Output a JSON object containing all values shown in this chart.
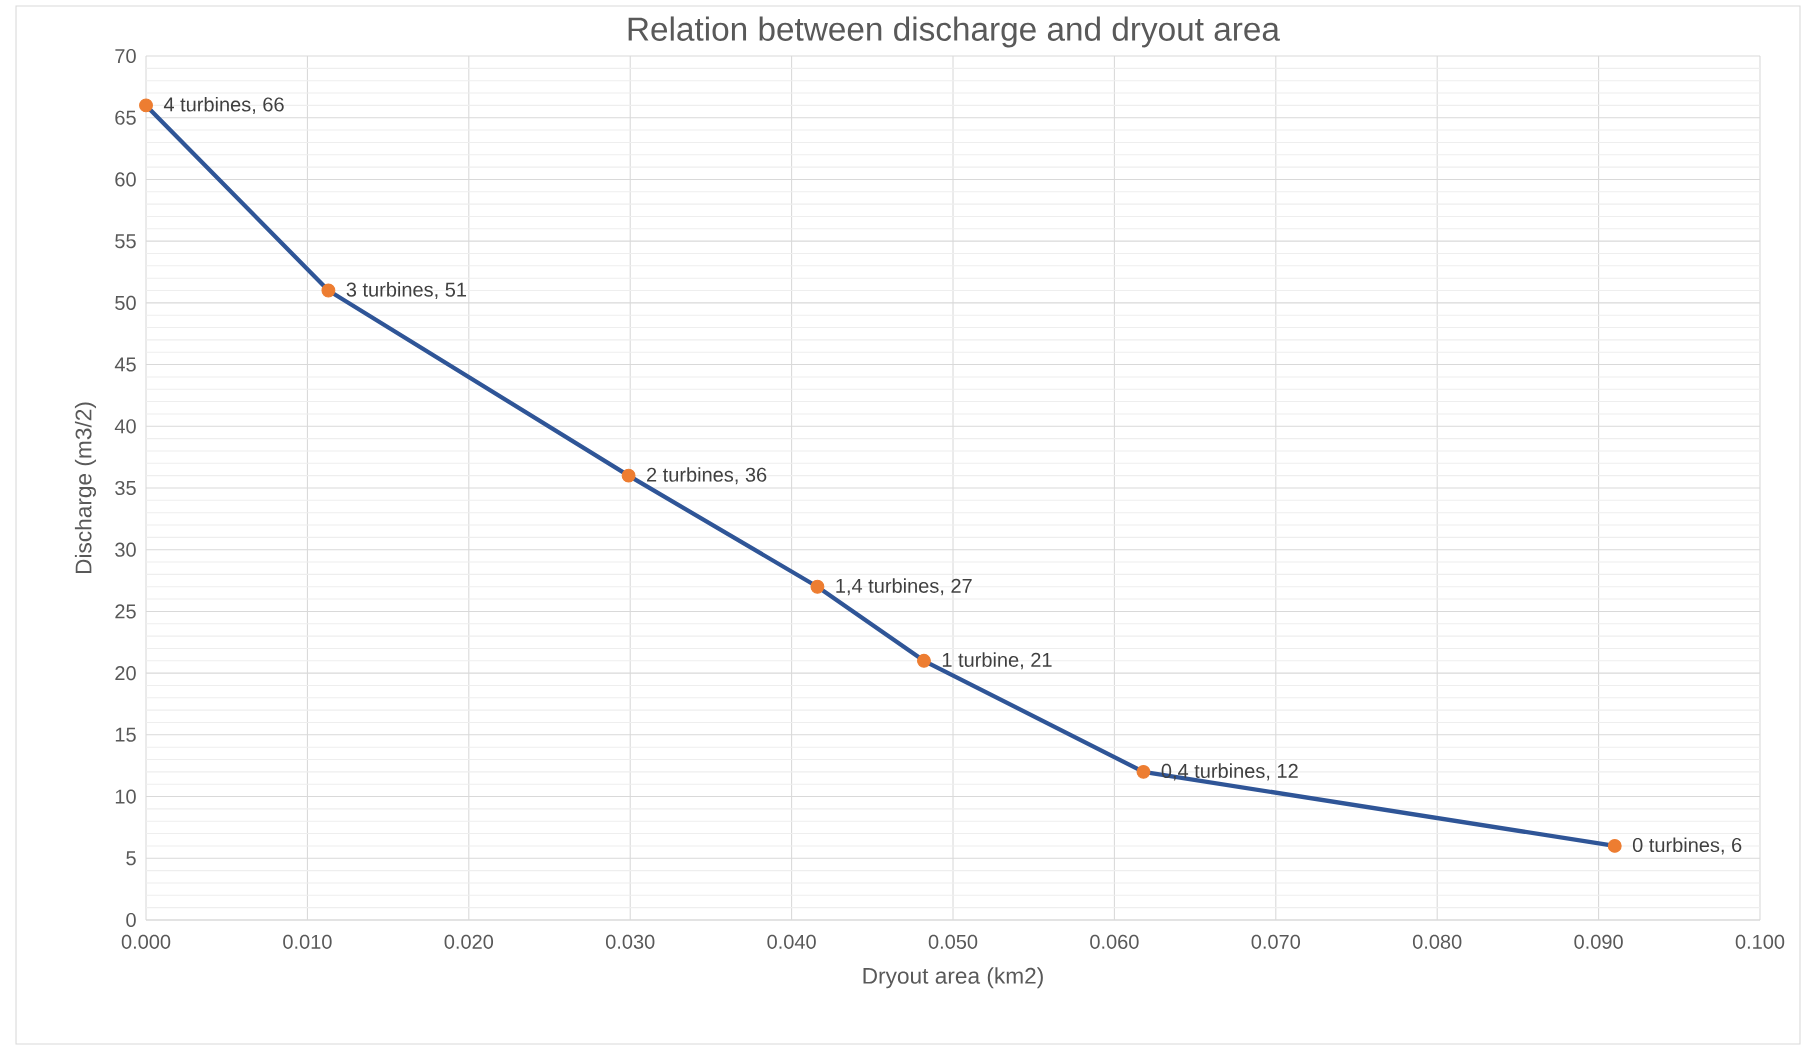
{
  "chart_data": {
    "type": "line",
    "title": "Relation between discharge and dryout area",
    "xlabel": "Dryout area (km2)",
    "ylabel": "Discharge (m3/2)",
    "series": [
      {
        "color": "#2f5597",
        "colors": [
          "#ed7d31",
          "#ed7d31",
          "#ed7d31",
          "#ed7d31",
          "#ed7d31",
          "#ed7d31",
          "#ed7d31"
        ],
        "x": [
          0.0,
          0.0113,
          0.0299,
          0.0416,
          0.0482,
          0.0618,
          0.091
        ],
        "values": [
          66,
          51,
          36,
          27,
          21,
          12,
          6
        ],
        "value_labels": [
          "4 turbines, 66",
          "3 turbines, 51",
          "2 turbines, 36",
          "1,4 turbines, 27",
          "1 turbine, 21",
          "0,4 turbines, 12",
          "0 turbines, 6"
        ]
      }
    ],
    "xlim": [
      0,
      0.1
    ],
    "ylim": [
      0,
      70
    ],
    "xticks": [
      {
        "value": 0,
        "label": "0.000"
      },
      {
        "value": 0.01,
        "label": "0.010"
      },
      {
        "value": 0.02,
        "label": "0.020"
      },
      {
        "value": 0.03,
        "label": "0.030"
      },
      {
        "value": 0.04,
        "label": "0.040"
      },
      {
        "value": 0.05,
        "label": "0.050"
      },
      {
        "value": 0.06,
        "label": "0.060"
      },
      {
        "value": 0.07,
        "label": "0.070"
      },
      {
        "value": 0.08,
        "label": "0.080"
      },
      {
        "value": 0.09,
        "label": "0.090"
      },
      {
        "value": 0.1,
        "label": "0.100"
      }
    ],
    "yticks": [
      0,
      5,
      10,
      15,
      20,
      25,
      30,
      35,
      40,
      45,
      50,
      55,
      60,
      65,
      70
    ],
    "grid": true,
    "marker": "circle",
    "line_style": "solid"
  }
}
